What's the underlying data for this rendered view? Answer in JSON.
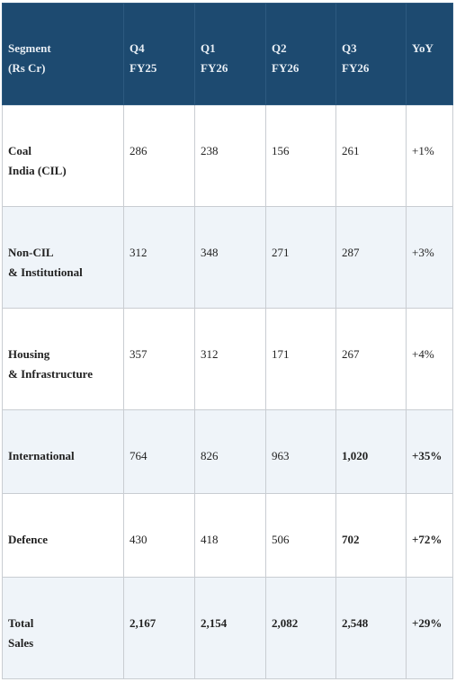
{
  "table": {
    "header": [
      [
        "Segment",
        "(Rs Cr)"
      ],
      [
        "Q4",
        "FY25"
      ],
      [
        "Q1",
        "FY26"
      ],
      [
        "Q2",
        "FY26"
      ],
      [
        "Q3",
        "FY26"
      ],
      [
        "YoY"
      ]
    ],
    "rows": [
      [
        [
          "Coal",
          "India (CIL)"
        ],
        "286",
        "238",
        "156",
        "261",
        "+1%"
      ],
      [
        [
          "Non-CIL",
          "& Institutional"
        ],
        "312",
        "348",
        "271",
        "287",
        "+3%"
      ],
      [
        [
          "Housing",
          "& Infrastructure"
        ],
        "357",
        "312",
        "171",
        "267",
        "+4%"
      ],
      [
        [
          "International"
        ],
        "764",
        "826",
        "963",
        "1,020",
        "+35%"
      ],
      [
        [
          "Defence"
        ],
        "430",
        "418",
        "506",
        "702",
        "+72%"
      ],
      [
        [
          "Total",
          "Sales"
        ],
        "2,167",
        "2,154",
        "2,082",
        "2,548",
        "+29%"
      ]
    ]
  }
}
